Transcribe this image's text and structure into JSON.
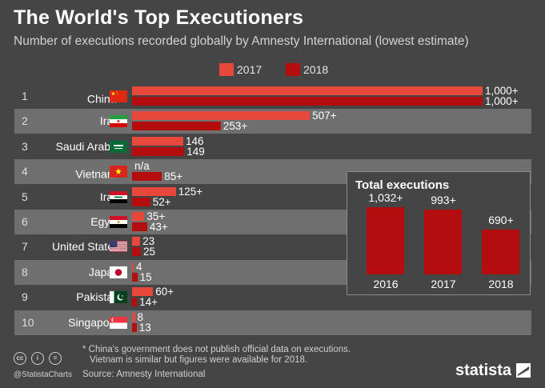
{
  "header": {
    "title": "The World's Top Executioners",
    "subtitle": "Number of executions recorded globally by Amnesty International (lowest estimate)"
  },
  "colors": {
    "c2017": "#e8483c",
    "c2018": "#b30d0e",
    "background": "#454545",
    "row_alt": "#6f6f6f"
  },
  "chart_data": [
    {
      "type": "bar",
      "orientation": "horizontal",
      "title": "The World's Top Executioners",
      "subtitle": "Number of executions recorded globally by Amnesty International (lowest estimate)",
      "legend": [
        "2017",
        "2018"
      ],
      "legend_position": "top-center",
      "categories": [
        "China",
        "Iran",
        "Saudi Arabia",
        "Vietnam",
        "Iraq",
        "Egypt",
        "United States",
        "Japan",
        "Pakistan",
        "Singapore"
      ],
      "ranks": [
        "1",
        "2",
        "3",
        "4",
        "5",
        "6",
        "7",
        "8",
        "9",
        "10"
      ],
      "asterisk": [
        true,
        false,
        false,
        true,
        false,
        false,
        false,
        false,
        false,
        false
      ],
      "series": [
        {
          "name": "2017",
          "values": [
            1000,
            507,
            146,
            null,
            125,
            35,
            23,
            4,
            60,
            8
          ],
          "labels": [
            "1,000+",
            "507+",
            "146",
            "n/a",
            "125+",
            "35+",
            "23",
            "4",
            "60+",
            "8"
          ]
        },
        {
          "name": "2018",
          "values": [
            1000,
            253,
            149,
            85,
            52,
            43,
            25,
            15,
            14,
            13
          ],
          "labels": [
            "1,000+",
            "253+",
            "149",
            "85+",
            "52+",
            "43+",
            "25",
            "15",
            "14+",
            "13"
          ]
        }
      ],
      "xlim": [
        0,
        1000
      ]
    },
    {
      "type": "bar",
      "title": "Total executions",
      "categories": [
        "2016",
        "2017",
        "2018"
      ],
      "values": [
        1032,
        993,
        690
      ],
      "labels": [
        "1,032+",
        "993+",
        "690+"
      ],
      "ylim": [
        0,
        1100
      ]
    }
  ],
  "footer": {
    "footnote_line1": "* China's government does not publish official data on executions.",
    "footnote_line2": "Vietnam is similar but figures were available for 2018.",
    "source": "Source: Amnesty International",
    "handle": "@StatistaCharts",
    "brand": "statista",
    "license_icons": [
      "cc-icon",
      "attribution-icon",
      "equals-icon"
    ],
    "license_glyphs": [
      "cc",
      "i",
      "="
    ]
  }
}
